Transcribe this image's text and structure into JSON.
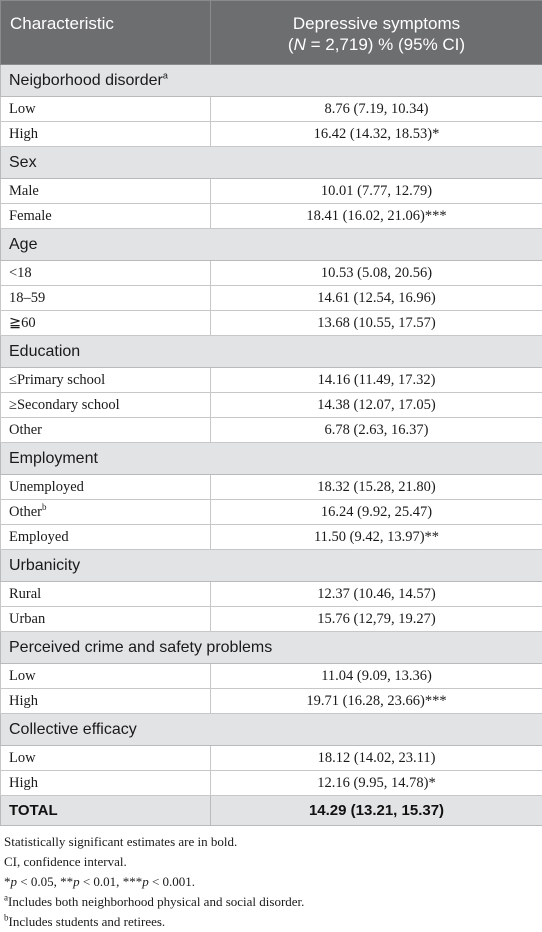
{
  "header": {
    "col1": "Characteristic",
    "col2_line1": "Depressive symptoms",
    "col2_n_prefix": "(",
    "col2_n_italic": "N",
    "col2_n_rest": " = 2,719) % (95% CI)"
  },
  "sections": [
    {
      "title": "Neigborhood disorder",
      "sup": "a",
      "rows": [
        {
          "label": "Low",
          "label_sup": "",
          "value": "8.76 (7.19, 10.34)"
        },
        {
          "label": "High",
          "label_sup": "",
          "value": "16.42 (14.32, 18.53)*"
        }
      ]
    },
    {
      "title": "Sex",
      "sup": "",
      "rows": [
        {
          "label": "Male",
          "label_sup": "",
          "value": "10.01 (7.77, 12.79)"
        },
        {
          "label": "Female",
          "label_sup": "",
          "value": "18.41 (16.02, 21.06)***"
        }
      ]
    },
    {
      "title": "Age",
      "sup": "",
      "rows": [
        {
          "label": "<18",
          "label_sup": "",
          "value": "10.53 (5.08, 20.56)"
        },
        {
          "label": "18–59",
          "label_sup": "",
          "value": "14.61 (12.54, 16.96)"
        },
        {
          "label": "≧60",
          "label_sup": "",
          "value": "13.68 (10.55, 17.57)"
        }
      ]
    },
    {
      "title": "Education",
      "sup": "",
      "rows": [
        {
          "label": "≤Primary school",
          "label_sup": "",
          "value": "14.16 (11.49, 17.32)"
        },
        {
          "label": "≥Secondary school",
          "label_sup": "",
          "value": "14.38 (12.07, 17.05)"
        },
        {
          "label": "Other",
          "label_sup": "",
          "value": "6.78 (2.63, 16.37)"
        }
      ]
    },
    {
      "title": "Employment",
      "sup": "",
      "rows": [
        {
          "label": "Unemployed",
          "label_sup": "",
          "value": "18.32 (15.28, 21.80)"
        },
        {
          "label": "Other",
          "label_sup": "b",
          "value": "16.24 (9.92, 25.47)"
        },
        {
          "label": "Employed",
          "label_sup": "",
          "value": "11.50 (9.42, 13.97)**"
        }
      ]
    },
    {
      "title": "Urbanicity",
      "sup": "",
      "rows": [
        {
          "label": "Rural",
          "label_sup": "",
          "value": "12.37 (10.46, 14.57)"
        },
        {
          "label": "Urban",
          "label_sup": "",
          "value": "15.76 (12,79, 19.27)"
        }
      ]
    },
    {
      "title": "Perceived crime and safety problems",
      "sup": "",
      "rows": [
        {
          "label": "Low",
          "label_sup": "",
          "value": "11.04 (9.09, 13.36)"
        },
        {
          "label": "High",
          "label_sup": "",
          "value": "19.71 (16.28, 23.66)***"
        }
      ]
    },
    {
      "title": "Collective efficacy",
      "sup": "",
      "rows": [
        {
          "label": "Low",
          "label_sup": "",
          "value": "18.12 (14.02, 23.11)"
        },
        {
          "label": "High",
          "label_sup": "",
          "value": "12.16 (9.95, 14.78)*"
        }
      ]
    }
  ],
  "total": {
    "label": "TOTAL",
    "value": "14.29 (13.21, 15.37)"
  },
  "footnotes": {
    "bold_note": "Statistically significant estimates are in bold.",
    "ci_note": "CI, confidence interval.",
    "p1_sym": "*",
    "p1_var": "p",
    "p1_txt": " < 0.05, ",
    "p2_sym": "**",
    "p2_var": "p",
    "p2_txt": " < 0.01, ",
    "p3_sym": "***",
    "p3_var": "p",
    "p3_txt": " < 0.001.",
    "a_sup": "a",
    "a_text": "Includes both neighborhood physical and social disorder.",
    "b_sup": "b",
    "b_text": "Includes students and retirees."
  }
}
